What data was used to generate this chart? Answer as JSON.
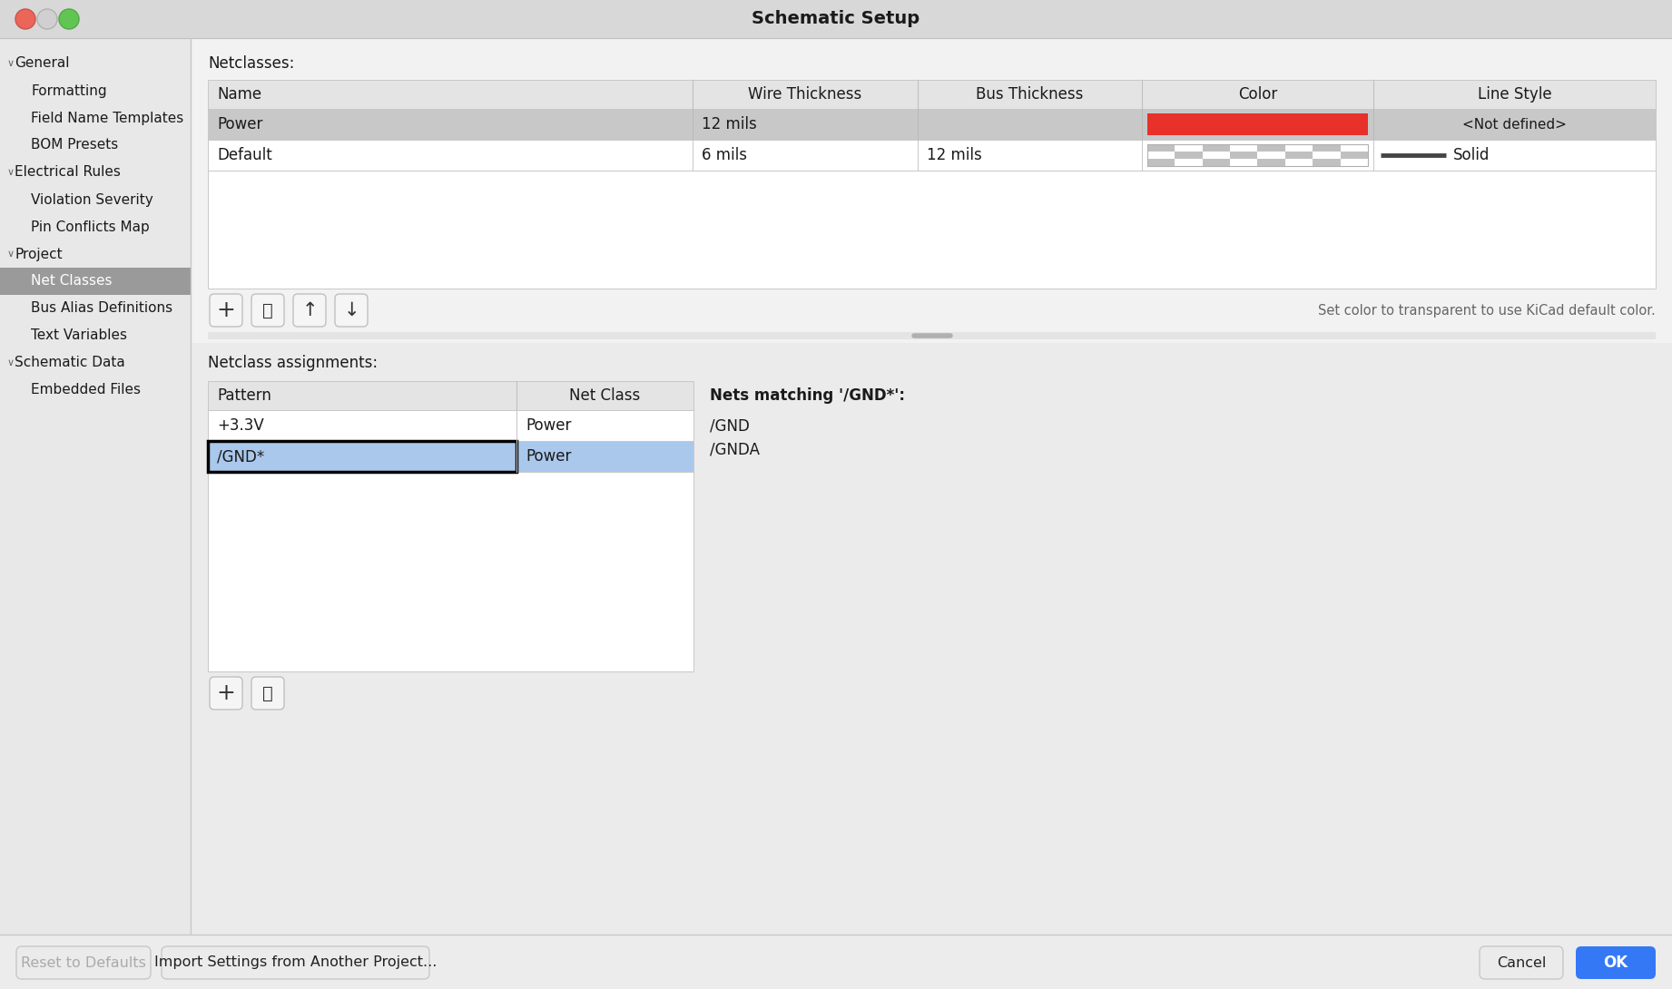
{
  "title_text": "Schematic Setup",
  "window_bg": "#ececec",
  "titlebar_bg": "#d8d8d8",
  "sidebar_bg": "#e8e8e8",
  "sidebar_selected_bg": "#9a9a9a",
  "sidebar_selected_text": "#ffffff",
  "sidebar_items": [
    {
      "label": "General",
      "level": 0,
      "chevron": true
    },
    {
      "label": "Formatting",
      "level": 1
    },
    {
      "label": "Field Name Templates",
      "level": 1
    },
    {
      "label": "BOM Presets",
      "level": 1
    },
    {
      "label": "Electrical Rules",
      "level": 0,
      "chevron": true
    },
    {
      "label": "Violation Severity",
      "level": 1
    },
    {
      "label": "Pin Conflicts Map",
      "level": 1
    },
    {
      "label": "Project",
      "level": 0,
      "chevron": true
    },
    {
      "label": "Net Classes",
      "level": 1,
      "selected": true
    },
    {
      "label": "Bus Alias Definitions",
      "level": 1
    },
    {
      "label": "Text Variables",
      "level": 1
    },
    {
      "label": "Schematic Data",
      "level": 0,
      "chevron": true
    },
    {
      "label": "Embedded Files",
      "level": 1
    }
  ],
  "content_bg": "#f0f0f0",
  "netclasses_label": "Netclasses:",
  "table_header_bg": "#e4e4e4",
  "table_row1_bg": "#c8c8c8",
  "table_row2_bg": "#ffffff",
  "table_cols": [
    "Name",
    "Wire Thickness",
    "Bus Thickness",
    "Color",
    "Line Style"
  ],
  "red_color": "#e8312a",
  "checker_color1": "#c0c0c0",
  "checker_color2": "#ffffff",
  "hint_text": "Set color to transparent to use KiCad default color.",
  "netclass_assign_label": "Netclass assignments:",
  "assign_selected_bg": "#aac8ec",
  "assign_selected_border": "#000000",
  "nets_label": "Nets matching '/GND*':",
  "nets_list": [
    "/GND",
    "/GNDA"
  ],
  "btn_reset_label": "Reset to Defaults",
  "btn_import_label": "Import Settings from Another Project...",
  "btn_cancel_label": "Cancel",
  "btn_ok_label": "OK",
  "btn_ok_bg": "#3478f6",
  "btn_ok_text": "#ffffff",
  "btn_disabled_text": "#aaaaaa",
  "btn_text": "#222222",
  "traffic_light_red": "#ec6559",
  "traffic_light_yellow": "#d0d0d0",
  "traffic_light_green": "#61c554"
}
